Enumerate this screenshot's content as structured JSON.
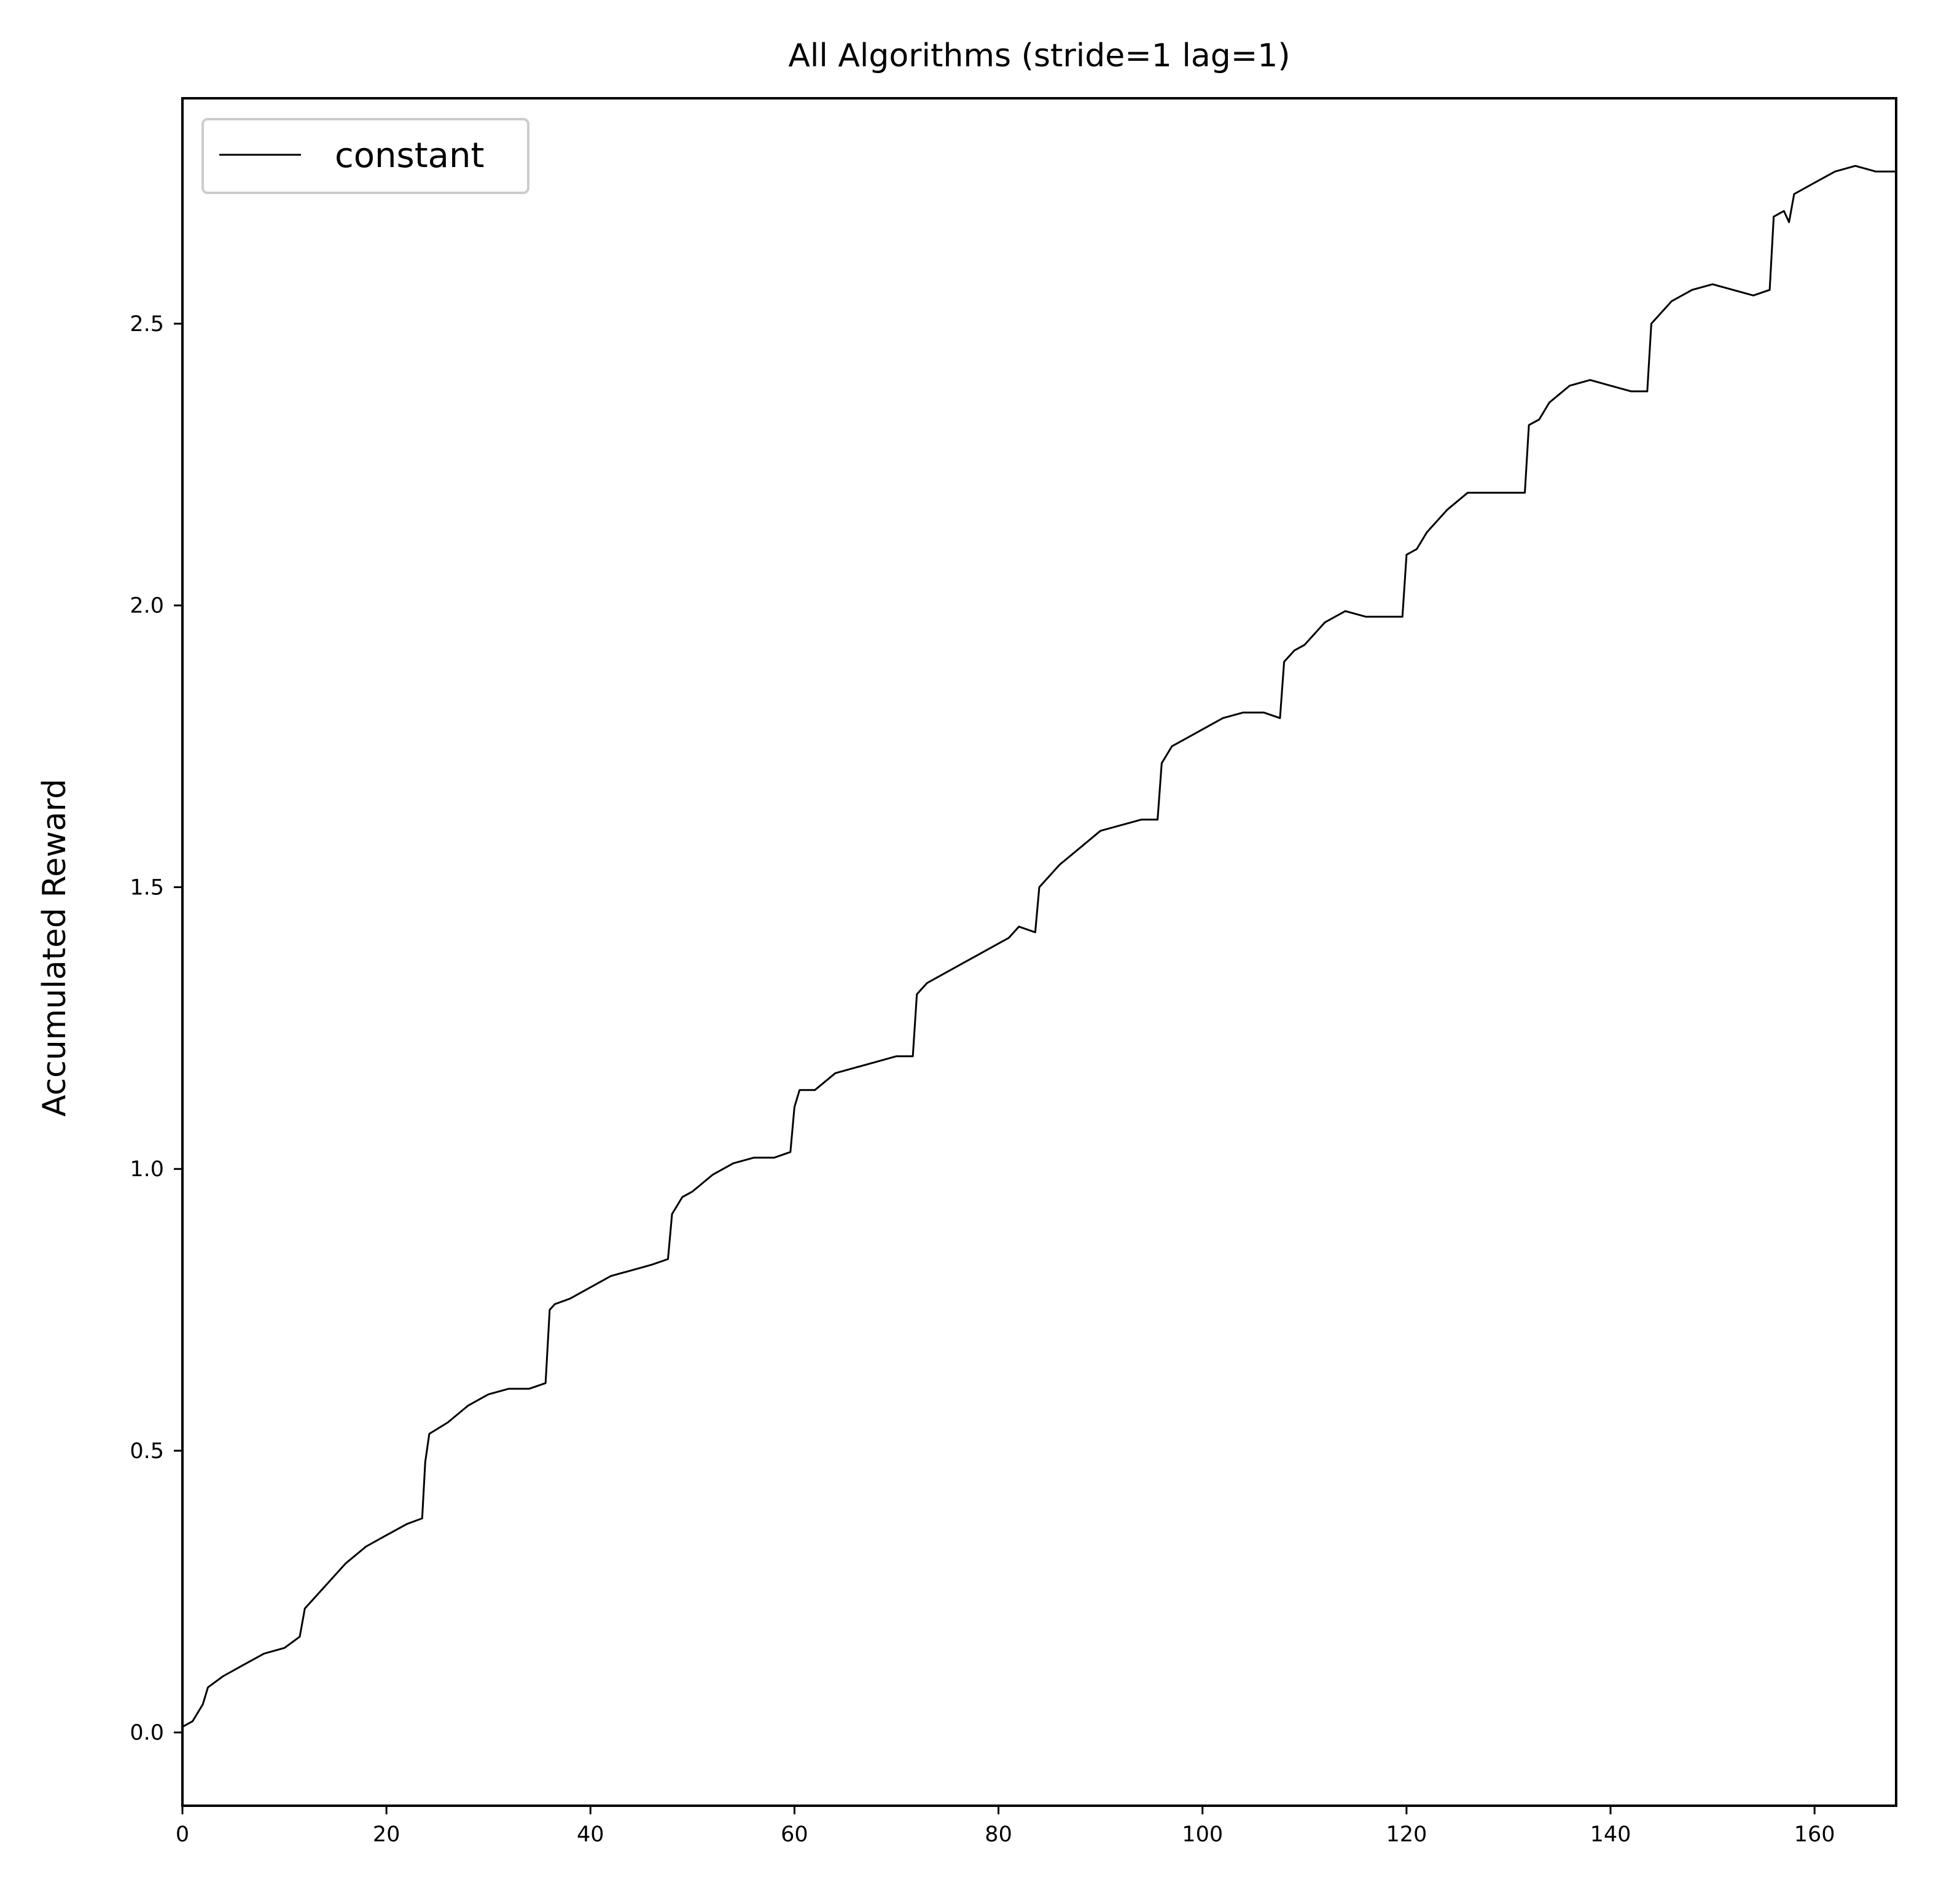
{
  "chart_data": {
    "type": "line",
    "title": "All Algorithms (stride=1 lag=1)",
    "xlabel": "",
    "ylabel": "Accumulated Reward",
    "xlim": [
      0,
      168
    ],
    "ylim": [
      -0.13,
      2.9
    ],
    "xticks": [
      0,
      20,
      40,
      60,
      80,
      100,
      120,
      140,
      160
    ],
    "xtick_labels": [
      "0",
      "20",
      "40",
      "60",
      "80",
      "100",
      "120",
      "140",
      "160"
    ],
    "yticks": [
      0.0,
      0.5,
      1.0,
      1.5,
      2.0,
      2.5
    ],
    "ytick_labels": [
      "0.0",
      "0.5",
      "1.0",
      "1.5",
      "2.0",
      "2.5"
    ],
    "grid": false,
    "legend_position": "top-left",
    "series": [
      {
        "name": "constant",
        "color": "#000000",
        "x": [
          0,
          1,
          2,
          2.5,
          4,
          6,
          8,
          10,
          11.5,
          12,
          14,
          16,
          18,
          20,
          22,
          23.5,
          23.8,
          24.2,
          26,
          28,
          30,
          32,
          34,
          35.6,
          36,
          36.5,
          38,
          40,
          42,
          44,
          46,
          47.6,
          48,
          49,
          50,
          52,
          54,
          56,
          58,
          59.6,
          60,
          60.5,
          62,
          64,
          66,
          68,
          70,
          71.6,
          72,
          73,
          74,
          76,
          78,
          80,
          81,
          82,
          83.6,
          84,
          85,
          86,
          88,
          90,
          92,
          94,
          95.6,
          96,
          97,
          98,
          100,
          102,
          104,
          106,
          107.6,
          108,
          109,
          110,
          112,
          114,
          116,
          118,
          119.6,
          120,
          121,
          122,
          124,
          126,
          128,
          130,
          131.6,
          132,
          133,
          134,
          136,
          138,
          140,
          142,
          143.6,
          144,
          145,
          146,
          148,
          150,
          152,
          154,
          155.6,
          156,
          157,
          157.5,
          158,
          160,
          162,
          164,
          166,
          167.8,
          168,
          168
        ],
        "y": [
          0.01,
          0.02,
          0.05,
          0.08,
          0.1,
          0.12,
          0.14,
          0.15,
          0.17,
          0.22,
          0.26,
          0.3,
          0.33,
          0.35,
          0.37,
          0.38,
          0.48,
          0.53,
          0.55,
          0.58,
          0.6,
          0.61,
          0.61,
          0.62,
          0.75,
          0.76,
          0.77,
          0.79,
          0.81,
          0.82,
          0.83,
          0.84,
          0.92,
          0.95,
          0.96,
          0.99,
          1.01,
          1.02,
          1.02,
          1.03,
          1.11,
          1.14,
          1.14,
          1.17,
          1.18,
          1.19,
          1.2,
          1.2,
          1.31,
          1.33,
          1.34,
          1.36,
          1.38,
          1.4,
          1.41,
          1.43,
          1.42,
          1.5,
          1.52,
          1.54,
          1.57,
          1.6,
          1.61,
          1.62,
          1.62,
          1.72,
          1.75,
          1.76,
          1.78,
          1.8,
          1.81,
          1.81,
          1.8,
          1.9,
          1.92,
          1.93,
          1.97,
          1.99,
          1.98,
          1.98,
          1.98,
          2.09,
          2.1,
          2.13,
          2.17,
          2.2,
          2.2,
          2.2,
          2.2,
          2.32,
          2.33,
          2.36,
          2.39,
          2.4,
          2.39,
          2.38,
          2.38,
          2.5,
          2.52,
          2.54,
          2.56,
          2.57,
          2.56,
          2.55,
          2.56,
          2.69,
          2.7,
          2.68,
          2.73,
          2.75,
          2.77,
          2.78,
          2.77,
          2.77,
          2.77,
          0.0
        ]
      }
    ]
  }
}
